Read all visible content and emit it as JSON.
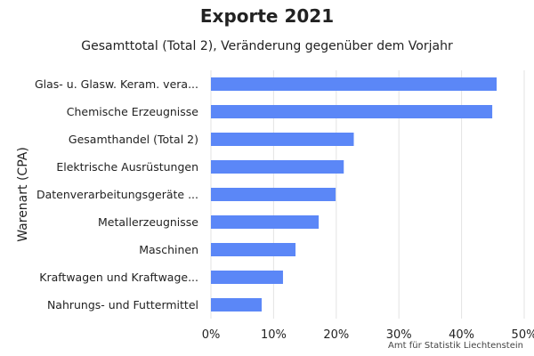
{
  "chart_data": {
    "type": "bar",
    "orientation": "horizontal",
    "title": "Exporte 2021",
    "subtitle": "Gesamttotal (Total 2), Veränderung gegenüber dem Vorjahr",
    "ylabel": "Warenart (CPA)",
    "xlabel": "",
    "credit": "Amt für Statistik Liechtenstein",
    "categories": [
      "Glas- u. Glasw. Keram. vera...",
      "Chemische Erzeugnisse",
      "Gesamthandel (Total 2)",
      "Elektrische Ausrüstungen",
      "Datenverarbeitungsgeräte ...",
      "Metallerzeugnisse",
      "Maschinen",
      "Kraftwagen und Kraftwage...",
      "Nahrungs- und Futtermittel"
    ],
    "values": [
      45.6,
      44.9,
      22.8,
      21.2,
      19.9,
      17.2,
      13.5,
      11.5,
      8.1
    ],
    "xlim": [
      0,
      50
    ],
    "xticks": [
      "0%",
      "10%",
      "20%",
      "30%",
      "40%",
      "50%"
    ],
    "grid": true,
    "bar_color": "#5b87f7"
  }
}
